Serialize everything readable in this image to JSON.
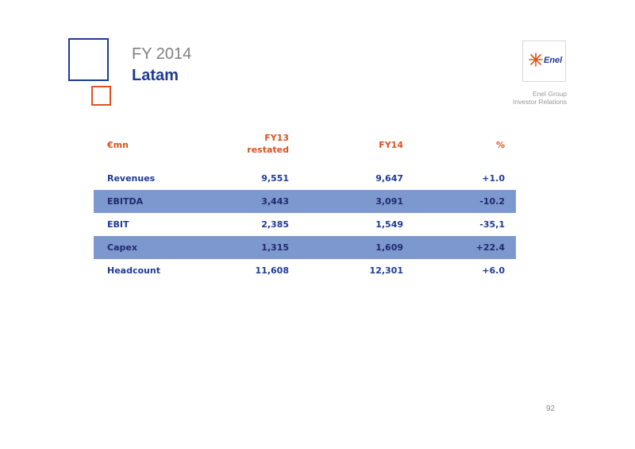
{
  "header": {
    "year_title": "FY 2014",
    "main_title": "Latam",
    "logo_text": "Enel",
    "ir_line1": "Enel Group",
    "ir_line2": "Investor Relations"
  },
  "table": {
    "columns": [
      "€mn",
      "FY13\nrestated",
      "FY14",
      "%"
    ],
    "col1_line1": "FY13",
    "col1_line2": "restated",
    "rows": [
      {
        "label": "Revenues",
        "fy13": "9,551",
        "fy14": "9,647",
        "pct": "+1.0",
        "shaded": false
      },
      {
        "label": "EBITDA",
        "fy13": "3,443",
        "fy14": "3,091",
        "pct": "-10.2",
        "shaded": true
      },
      {
        "label": "EBIT",
        "fy13": "2,385",
        "fy14": "1,549",
        "pct": "-35,1",
        "shaded": false
      },
      {
        "label": "Capex",
        "fy13": "1,315",
        "fy14": "1,609",
        "pct": "+22.4",
        "shaded": true
      },
      {
        "label": "Headcount",
        "fy13": "11,608",
        "fy14": "12,301",
        "pct": "+6.0",
        "shaded": false
      }
    ]
  },
  "page_number": "92",
  "colors": {
    "accent_blue": "#1f3a93",
    "accent_orange": "#e0531f",
    "row_shade": "#7d98cf"
  },
  "icons": {
    "logo": "enel-logo-icon"
  }
}
